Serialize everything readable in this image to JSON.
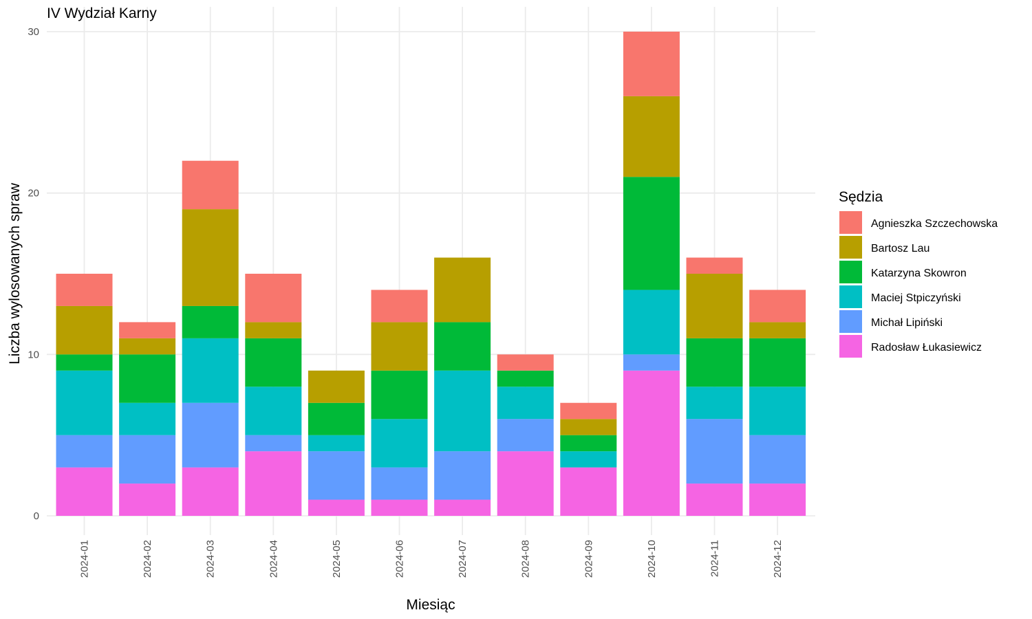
{
  "chart_data": {
    "type": "bar",
    "stacked": true,
    "title": "IV Wydział Karny",
    "xlabel": "Miesiąc",
    "ylabel": "Liczba wylosowanych spraw",
    "ylim": [
      0,
      30
    ],
    "yticks": [
      0,
      10,
      20,
      30
    ],
    "grid": true,
    "legend_position": "right",
    "legend_title": "Sędzia",
    "categories": [
      "2024-01",
      "2024-02",
      "2024-03",
      "2024-04",
      "2024-05",
      "2024-06",
      "2024-07",
      "2024-08",
      "2024-09",
      "2024-10",
      "2024-11",
      "2024-12"
    ],
    "series": [
      {
        "name": "Agnieszka Szczechowska",
        "color": "#F8766D",
        "values": [
          2,
          1,
          3,
          3,
          0,
          2,
          0,
          1,
          1,
          4,
          1,
          2
        ]
      },
      {
        "name": "Bartosz Lau",
        "color": "#B79F00",
        "values": [
          3,
          1,
          6,
          1,
          2,
          3,
          4,
          0,
          1,
          5,
          4,
          1
        ]
      },
      {
        "name": "Katarzyna Skowron",
        "color": "#00BA38",
        "values": [
          1,
          3,
          2,
          3,
          2,
          3,
          3,
          1,
          1,
          7,
          3,
          3
        ]
      },
      {
        "name": "Maciej Stpiczyński",
        "color": "#00BFC4",
        "values": [
          4,
          2,
          4,
          3,
          1,
          3,
          5,
          2,
          1,
          4,
          2,
          3
        ]
      },
      {
        "name": "Michał Lipiński",
        "color": "#619CFF",
        "values": [
          2,
          3,
          4,
          1,
          3,
          2,
          3,
          2,
          0,
          1,
          4,
          3
        ]
      },
      {
        "name": "Radosław Łukasiewicz",
        "color": "#F564E3",
        "values": [
          3,
          2,
          3,
          4,
          1,
          1,
          1,
          4,
          3,
          9,
          2,
          2
        ]
      }
    ]
  }
}
